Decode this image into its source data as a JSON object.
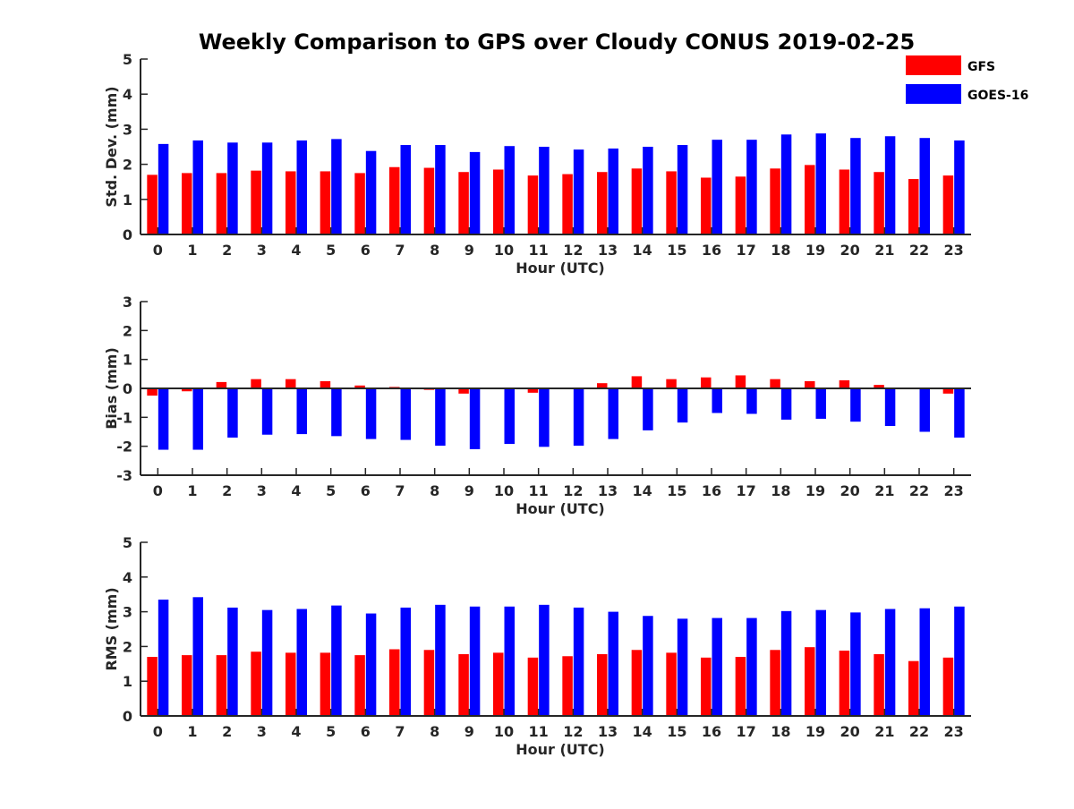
{
  "title": "Weekly Comparison to GPS over Cloudy CONUS 2019-02-25",
  "legend": {
    "placement": "top-right",
    "items": [
      {
        "label": "GFS",
        "color": "#ff0000"
      },
      {
        "label": "GOES-16",
        "color": "#0000ff"
      }
    ]
  },
  "chart_data": [
    {
      "type": "bar",
      "xlabel": "Hour (UTC)",
      "ylabel": "Std. Dev. (mm)",
      "ylim": [
        0,
        5
      ],
      "yticks": [
        0,
        1,
        2,
        3,
        4,
        5
      ],
      "grid": false,
      "categories": [
        "0",
        "1",
        "2",
        "3",
        "4",
        "5",
        "6",
        "7",
        "8",
        "9",
        "10",
        "11",
        "12",
        "13",
        "14",
        "15",
        "16",
        "17",
        "18",
        "19",
        "20",
        "21",
        "22",
        "23"
      ],
      "series": [
        {
          "name": "GFS",
          "color": "#ff0000",
          "values": [
            1.7,
            1.75,
            1.75,
            1.82,
            1.8,
            1.8,
            1.75,
            1.92,
            1.9,
            1.78,
            1.85,
            1.68,
            1.72,
            1.78,
            1.88,
            1.8,
            1.62,
            1.65,
            1.88,
            1.98,
            1.85,
            1.78,
            1.58,
            1.68
          ]
        },
        {
          "name": "GOES-16",
          "color": "#0000ff",
          "values": [
            2.58,
            2.68,
            2.62,
            2.62,
            2.68,
            2.72,
            2.38,
            2.55,
            2.55,
            2.35,
            2.52,
            2.5,
            2.42,
            2.45,
            2.5,
            2.55,
            2.7,
            2.7,
            2.85,
            2.88,
            2.75,
            2.8,
            2.75,
            2.68
          ]
        }
      ]
    },
    {
      "type": "bar",
      "xlabel": "Hour (UTC)",
      "ylabel": "Bias (mm)",
      "ylim": [
        -3,
        3
      ],
      "yticks": [
        -3,
        -2,
        -1,
        0,
        1,
        2,
        3
      ],
      "grid": false,
      "categories": [
        "0",
        "1",
        "2",
        "3",
        "4",
        "5",
        "6",
        "7",
        "8",
        "9",
        "10",
        "11",
        "12",
        "13",
        "14",
        "15",
        "16",
        "17",
        "18",
        "19",
        "20",
        "21",
        "22",
        "23"
      ],
      "series": [
        {
          "name": "GFS",
          "color": "#ff0000",
          "values": [
            -0.25,
            -0.1,
            0.22,
            0.32,
            0.32,
            0.25,
            0.1,
            0.05,
            -0.05,
            -0.18,
            0.0,
            -0.15,
            0.0,
            0.18,
            0.42,
            0.32,
            0.38,
            0.45,
            0.32,
            0.25,
            0.28,
            0.12,
            -0.02,
            -0.18
          ]
        },
        {
          "name": "GOES-16",
          "color": "#0000ff",
          "values": [
            -2.12,
            -2.12,
            -1.7,
            -1.6,
            -1.58,
            -1.65,
            -1.75,
            -1.78,
            -1.98,
            -2.1,
            -1.92,
            -2.02,
            -1.98,
            -1.75,
            -1.45,
            -1.18,
            -0.85,
            -0.88,
            -1.08,
            -1.05,
            -1.15,
            -1.3,
            -1.5,
            -1.7
          ]
        }
      ]
    },
    {
      "type": "bar",
      "xlabel": "Hour (UTC)",
      "ylabel": "RMS (mm)",
      "ylim": [
        0,
        5
      ],
      "yticks": [
        0,
        1,
        2,
        3,
        4,
        5
      ],
      "grid": false,
      "categories": [
        "0",
        "1",
        "2",
        "3",
        "4",
        "5",
        "6",
        "7",
        "8",
        "9",
        "10",
        "11",
        "12",
        "13",
        "14",
        "15",
        "16",
        "17",
        "18",
        "19",
        "20",
        "21",
        "22",
        "23"
      ],
      "series": [
        {
          "name": "GFS",
          "color": "#ff0000",
          "values": [
            1.7,
            1.75,
            1.75,
            1.85,
            1.82,
            1.82,
            1.75,
            1.92,
            1.9,
            1.78,
            1.82,
            1.68,
            1.72,
            1.78,
            1.9,
            1.82,
            1.68,
            1.7,
            1.9,
            1.98,
            1.88,
            1.78,
            1.58,
            1.68
          ]
        },
        {
          "name": "GOES-16",
          "color": "#0000ff",
          "values": [
            3.35,
            3.42,
            3.12,
            3.05,
            3.08,
            3.18,
            2.95,
            3.12,
            3.2,
            3.15,
            3.15,
            3.2,
            3.12,
            3.0,
            2.88,
            2.8,
            2.82,
            2.82,
            3.02,
            3.05,
            2.98,
            3.08,
            3.1,
            3.15
          ]
        }
      ]
    }
  ]
}
